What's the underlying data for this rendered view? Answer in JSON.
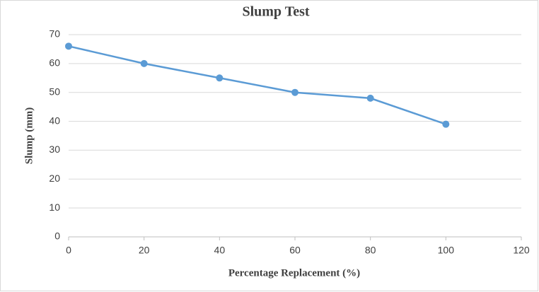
{
  "chart_data": {
    "type": "line",
    "title": "Slump Test",
    "xlabel": "Percentage Replacement (%)",
    "ylabel": "Slump (mm)",
    "x": [
      0,
      20,
      40,
      60,
      80,
      100
    ],
    "values": [
      66,
      60,
      55,
      50,
      48,
      39
    ],
    "color": "#5b9bd5",
    "xlim": [
      0,
      120
    ],
    "xticks": [
      0,
      20,
      40,
      60,
      80,
      100,
      120
    ],
    "ylim": [
      0,
      70
    ],
    "yticks": [
      0,
      10,
      20,
      30,
      40,
      50,
      60,
      70
    ],
    "grid": true
  }
}
